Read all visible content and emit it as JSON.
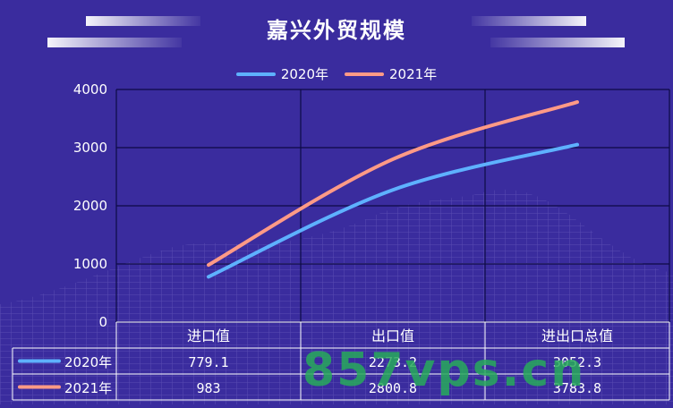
{
  "chart_data": {
    "type": "line",
    "title": "嘉兴外贸规模",
    "categories": [
      "进口值",
      "出口值",
      "进出口总值"
    ],
    "series": [
      {
        "name": "2020年",
        "values": [
          779.1,
          2273.2,
          3052.3
        ],
        "display": [
          "779.1",
          "2273.2",
          "3052.3"
        ],
        "color": "#5eb1ff"
      },
      {
        "name": "2021年",
        "values": [
          983,
          2800.8,
          3783.8
        ],
        "display": [
          "983",
          "2800.8",
          "3783.8"
        ],
        "color": "#ff9a86"
      }
    ],
    "ylim": [
      0,
      4000
    ],
    "yticks": [
      "0",
      "1000",
      "2000",
      "3000",
      "4000"
    ],
    "grid": true,
    "legend": "top-center",
    "data_table": true
  },
  "watermark": "857vps.cn",
  "colors": {
    "background": "#3a2c9e",
    "grid": "#0d0a45",
    "table_border": "#ffffff"
  }
}
